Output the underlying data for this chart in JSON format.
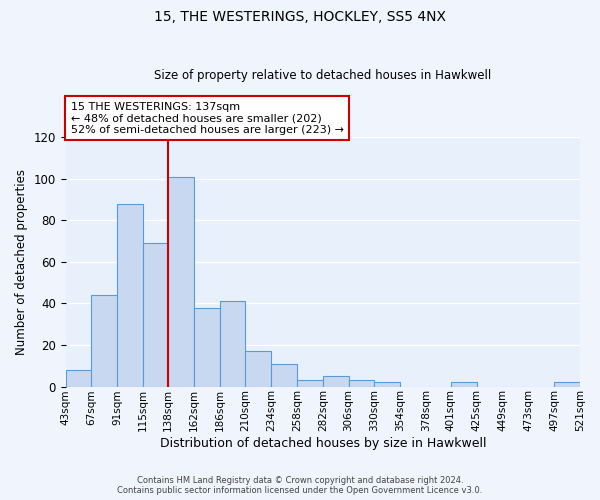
{
  "title": "15, THE WESTERINGS, HOCKLEY, SS5 4NX",
  "subtitle": "Size of property relative to detached houses in Hawkwell",
  "xlabel": "Distribution of detached houses by size in Hawkwell",
  "ylabel": "Number of detached properties",
  "bar_color": "#c8d8f0",
  "bar_edge_color": "#5b9bd5",
  "background_color": "#e8f0fb",
  "fig_background_color": "#f0f4fc",
  "grid_color": "#ffffff",
  "bin_edges": [
    43,
    67,
    91,
    115,
    138,
    162,
    186,
    210,
    234,
    258,
    282,
    306,
    330,
    354,
    378,
    401,
    425,
    449,
    473,
    497,
    521
  ],
  "bin_labels": [
    "43sqm",
    "67sqm",
    "91sqm",
    "115sqm",
    "138sqm",
    "162sqm",
    "186sqm",
    "210sqm",
    "234sqm",
    "258sqm",
    "282sqm",
    "306sqm",
    "330sqm",
    "354sqm",
    "378sqm",
    "401sqm",
    "425sqm",
    "449sqm",
    "473sqm",
    "497sqm",
    "521sqm"
  ],
  "counts": [
    8,
    44,
    88,
    69,
    101,
    38,
    41,
    17,
    11,
    3,
    5,
    3,
    2,
    0,
    0,
    2,
    0,
    0,
    0,
    2
  ],
  "vline_x": 138,
  "vline_color": "#cc0000",
  "annotation_line1": "15 THE WESTERINGS: 137sqm",
  "annotation_line2": "← 48% of detached houses are smaller (202)",
  "annotation_line3": "52% of semi-detached houses are larger (223) →",
  "annotation_box_color": "#ffffff",
  "annotation_box_edge": "#cc0000",
  "ylim": [
    0,
    120
  ],
  "yticks": [
    0,
    20,
    40,
    60,
    80,
    100,
    120
  ],
  "footer1": "Contains HM Land Registry data © Crown copyright and database right 2024.",
  "footer2": "Contains public sector information licensed under the Open Government Licence v3.0."
}
